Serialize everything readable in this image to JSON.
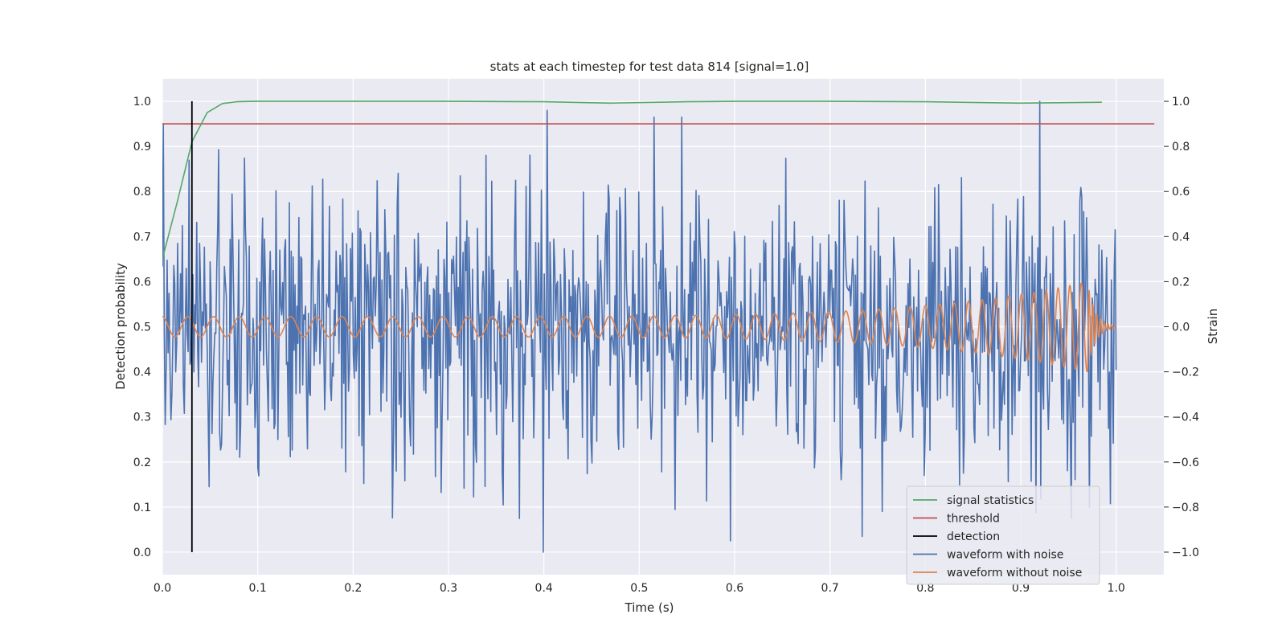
{
  "chart_data": {
    "type": "line",
    "title": "stats at each timestep for test data 814 [signal=1.0]",
    "xlabel": "Time (s)",
    "ylabel_left": "Detection probability",
    "ylabel_right": "Strain",
    "xlim": [
      0.0,
      1.05
    ],
    "ylim_left": [
      -0.05,
      1.05
    ],
    "ylim_right": [
      -1.1,
      1.1
    ],
    "x_ticks": [
      "0.0",
      "0.1",
      "0.2",
      "0.3",
      "0.4",
      "0.5",
      "0.6",
      "0.7",
      "0.8",
      "0.9",
      "1.0"
    ],
    "y_ticks_left": [
      "0.0",
      "0.1",
      "0.2",
      "0.3",
      "0.4",
      "0.5",
      "0.6",
      "0.7",
      "0.8",
      "0.9",
      "1.0"
    ],
    "y_ticks_right": [
      "−1.0",
      "−0.8",
      "−0.6",
      "−0.4",
      "−0.2",
      "0.0",
      "0.2",
      "0.4",
      "0.6",
      "0.8",
      "1.0"
    ],
    "grid": true,
    "legend_position": "lower-right",
    "colors": {
      "background": "#eaeaf2",
      "grid": "#ffffff",
      "signal_statistics": "#55a868",
      "threshold": "#c44e52",
      "detection": "#000000",
      "waveform_with_noise": "#4c72b0",
      "waveform_without_noise": "#dd8452"
    },
    "series": [
      {
        "name": "signal statistics",
        "axis": "left",
        "x": [
          0.0,
          0.016,
          0.031,
          0.047,
          0.063,
          0.078,
          0.094,
          0.2,
          0.3,
          0.4,
          0.47,
          0.55,
          0.6,
          0.7,
          0.8,
          0.9,
          0.985
        ],
        "y": [
          0.65,
          0.78,
          0.91,
          0.975,
          0.995,
          0.999,
          1.0,
          1.0,
          1.0,
          0.999,
          0.996,
          0.999,
          1.0,
          1.0,
          0.999,
          0.996,
          0.998
        ]
      },
      {
        "name": "threshold",
        "axis": "left",
        "x": [
          0.0,
          1.04
        ],
        "y": [
          0.95,
          0.95
        ]
      },
      {
        "name": "detection",
        "axis": "left",
        "x": [
          0.031,
          0.031
        ],
        "y": [
          0.0,
          1.0
        ]
      },
      {
        "name": "waveform with noise",
        "axis": "right",
        "generator": "noise",
        "x_range": [
          0.0,
          1.0
        ],
        "n_points": 1000,
        "std": 0.32,
        "peaks": [
          {
            "x": 0.001,
            "y": 0.9
          },
          {
            "x": 0.399,
            "y": -1.0
          },
          {
            "x": 0.403,
            "y": 0.96
          },
          {
            "x": 0.596,
            "y": -0.95
          },
          {
            "x": 0.734,
            "y": -0.93
          },
          {
            "x": 0.92,
            "y": 1.0
          },
          {
            "x": 0.953,
            "y": -0.85
          },
          {
            "x": 0.972,
            "y": -0.8
          }
        ]
      },
      {
        "name": "waveform without noise",
        "axis": "right",
        "generator": "chirp",
        "x_range": [
          0.0,
          1.0
        ],
        "n_points": 3000,
        "f_start": 37,
        "f_end": 85,
        "amp_start": 0.045,
        "amp_end": 0.2,
        "merger_time": 0.97,
        "ringdown_tau": 0.008
      }
    ]
  }
}
